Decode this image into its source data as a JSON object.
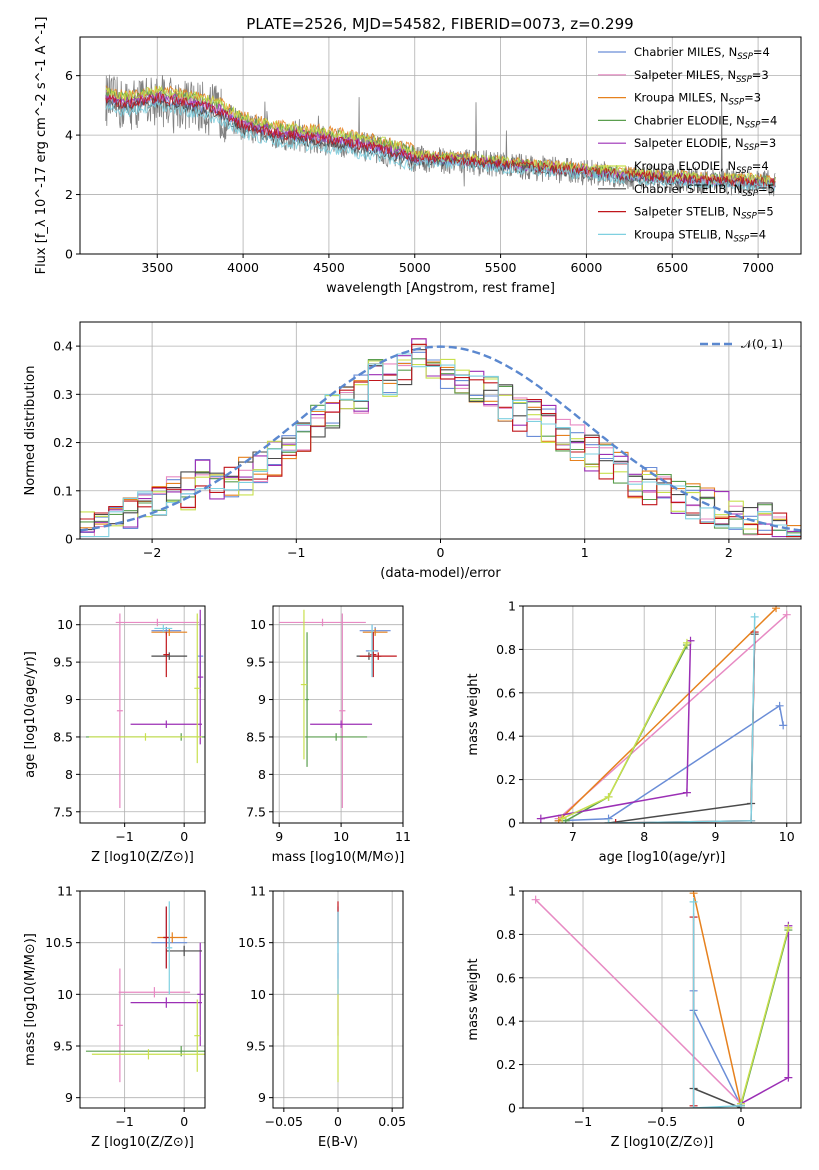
{
  "figure": {
    "title": "PLATE=2526, MJD=54582, FIBERID=0073, z=0.299"
  },
  "models": [
    {
      "name": "Chabrier MILES",
      "nssp": "4",
      "color": "#6a8dd7"
    },
    {
      "name": "Salpeter MILES",
      "nssp": "3",
      "color": "#e78ac3"
    },
    {
      "name": "Kroupa MILES",
      "nssp": "3",
      "color": "#e6811e"
    },
    {
      "name": "Chabrier ELODIE",
      "nssp": "4",
      "color": "#5a9e4e"
    },
    {
      "name": "Salpeter ELODIE",
      "nssp": "3",
      "color": "#9b2fb5"
    },
    {
      "name": "Kroupa ELODIE",
      "nssp": "4",
      "color": "#c8e04e"
    },
    {
      "name": "Chabrier STELIB",
      "nssp": "5",
      "color": "#4a4a4a"
    },
    {
      "name": "Salpeter STELIB",
      "nssp": "5",
      "color": "#c0161b"
    },
    {
      "name": "Kroupa STELIB",
      "nssp": "4",
      "color": "#7fd0e0"
    }
  ],
  "chart_data": [
    {
      "id": "spectrum",
      "type": "line",
      "xlabel": "wavelength [Angstrom, rest frame]",
      "ylabel": "Flux [f_λ 10^-17 erg cm^-2 s^-1 A^-1]",
      "xlim": [
        3050,
        7250
      ],
      "ylim": [
        0,
        7.3
      ],
      "xticks": [
        3500,
        4000,
        4500,
        5000,
        5500,
        6000,
        6500,
        7000
      ],
      "yticks": [
        0,
        2,
        4,
        6
      ],
      "legend": "top-right",
      "data_color": "#808080",
      "continuum": [
        [
          3200,
          5.2
        ],
        [
          3300,
          5.0
        ],
        [
          3500,
          5.2
        ],
        [
          3700,
          5.0
        ],
        [
          3850,
          4.8
        ],
        [
          4000,
          4.3
        ],
        [
          4200,
          4.0
        ],
        [
          4500,
          3.8
        ],
        [
          4800,
          3.5
        ],
        [
          5000,
          3.2
        ],
        [
          5300,
          3.1
        ],
        [
          5700,
          2.9
        ],
        [
          6000,
          2.75
        ],
        [
          6300,
          2.6
        ],
        [
          6700,
          2.45
        ],
        [
          7000,
          2.4
        ],
        [
          7100,
          2.35
        ]
      ],
      "model_offsets": [
        0.0,
        0.15,
        0.35,
        0.25,
        0.1,
        0.3,
        -0.1,
        0.05,
        -0.25
      ]
    },
    {
      "id": "residuals",
      "type": "step",
      "xlabel": "(data-model)/error",
      "ylabel": "Normed distribution",
      "xlim": [
        -2.5,
        2.5
      ],
      "ylim": [
        0,
        0.45
      ],
      "xticks": [
        -2,
        -1,
        0,
        1,
        2
      ],
      "yticks": [
        0.0,
        0.1,
        0.2,
        0.3,
        0.4
      ],
      "reference": {
        "name": "𝒩(0, 1)",
        "mean": 0,
        "sigma": 1,
        "color": "#5b88cf"
      },
      "legend": "top-right",
      "bin_edges_start": -2.5,
      "bin_width": 0.1,
      "base_histogram": [
        0.03,
        0.035,
        0.04,
        0.05,
        0.06,
        0.07,
        0.09,
        0.1,
        0.14,
        0.12,
        0.12,
        0.13,
        0.15,
        0.17,
        0.2,
        0.22,
        0.24,
        0.26,
        0.29,
        0.3,
        0.34,
        0.33,
        0.36,
        0.38,
        0.37,
        0.35,
        0.33,
        0.31,
        0.3,
        0.28,
        0.26,
        0.25,
        0.24,
        0.22,
        0.2,
        0.18,
        0.16,
        0.14,
        0.12,
        0.11,
        0.1,
        0.09,
        0.08,
        0.07,
        0.06,
        0.05,
        0.04,
        0.035,
        0.03,
        0.025
      ]
    },
    {
      "id": "age-vs-Z",
      "type": "errorbar",
      "xlabel": "Z [log10(Z/Z⊙)]",
      "ylabel": "age  [log10(age/yr)]",
      "xlim": [
        -1.75,
        0.35
      ],
      "ylim": [
        7.35,
        10.25
      ],
      "xticks": [
        -1,
        0
      ],
      "yticks": [
        7.5,
        8.0,
        8.5,
        9.0,
        9.5,
        10.0
      ],
      "points": [
        {
          "model": 0,
          "x": -0.3,
          "y": 9.92,
          "xerr": 0.25,
          "yerr": 0.05
        },
        {
          "model": 0,
          "x": 0.27,
          "y": 9.58,
          "xerr": 0.05,
          "yerr": 0.5
        },
        {
          "model": 1,
          "x": -0.45,
          "y": 10.03,
          "xerr": 0.7,
          "yerr": 0.05
        },
        {
          "model": 1,
          "x": -1.08,
          "y": 8.85,
          "xerr": 0.05,
          "yerr": 1.3
        },
        {
          "model": 2,
          "x": -0.25,
          "y": 9.9,
          "xerr": 0.3,
          "yerr": 0.05
        },
        {
          "model": 3,
          "x": -0.05,
          "y": 8.5,
          "xerr": 1.6,
          "yerr": 0.05
        },
        {
          "model": 4,
          "x": -0.3,
          "y": 8.67,
          "xerr": 0.6,
          "yerr": 0.05
        },
        {
          "model": 4,
          "x": 0.27,
          "y": 9.3,
          "xerr": 0.05,
          "yerr": 0.9
        },
        {
          "model": 5,
          "x": -0.65,
          "y": 8.5,
          "xerr": 0.95,
          "yerr": 0.05
        },
        {
          "model": 5,
          "x": 0.22,
          "y": 9.15,
          "xerr": 0.05,
          "yerr": 1.0
        },
        {
          "model": 6,
          "x": -0.25,
          "y": 9.58,
          "xerr": 0.3,
          "yerr": 0.05
        },
        {
          "model": 7,
          "x": -0.3,
          "y": 9.6,
          "xerr": 0.05,
          "yerr": 0.3
        },
        {
          "model": 8,
          "x": -0.35,
          "y": 9.95,
          "xerr": 0.15,
          "yerr": 0.05
        }
      ]
    },
    {
      "id": "age-vs-mass",
      "type": "errorbar",
      "xlabel": "mass [log10(M/M⊙)]",
      "ylabel": "",
      "xlim": [
        8.9,
        11.0
      ],
      "ylim": [
        7.35,
        10.25
      ],
      "xticks": [
        9,
        10,
        11
      ],
      "yticks": [
        7.5,
        8.0,
        8.5,
        9.0,
        9.5,
        10.0
      ],
      "points": [
        {
          "model": 0,
          "x": 10.55,
          "y": 9.92,
          "xerr": 0.25,
          "yerr": 0.05
        },
        {
          "model": 0,
          "x": 10.5,
          "y": 9.65,
          "xerr": 0.1,
          "yerr": 0.35
        },
        {
          "model": 1,
          "x": 9.7,
          "y": 10.03,
          "xerr": 0.7,
          "yerr": 0.05
        },
        {
          "model": 1,
          "x": 10.02,
          "y": 8.85,
          "xerr": 0.05,
          "yerr": 1.3
        },
        {
          "model": 2,
          "x": 10.55,
          "y": 9.9,
          "xerr": 0.2,
          "yerr": 0.05
        },
        {
          "model": 3,
          "x": 9.92,
          "y": 8.5,
          "xerr": 0.5,
          "yerr": 0.05
        },
        {
          "model": 3,
          "x": 9.45,
          "y": 9.0,
          "xerr": 0.03,
          "yerr": 0.9
        },
        {
          "model": 4,
          "x": 10.0,
          "y": 8.67,
          "xerr": 0.5,
          "yerr": 0.05
        },
        {
          "model": 5,
          "x": 9.4,
          "y": 9.2,
          "xerr": 0.05,
          "yerr": 1.0
        },
        {
          "model": 6,
          "x": 10.45,
          "y": 9.58,
          "xerr": 0.2,
          "yerr": 0.05
        },
        {
          "model": 7,
          "x": 10.6,
          "y": 9.58,
          "xerr": 0.3,
          "yerr": 0.05
        },
        {
          "model": 7,
          "x": 10.52,
          "y": 9.6,
          "xerr": 0.05,
          "yerr": 0.3
        },
        {
          "model": 8,
          "x": 10.5,
          "y": 9.65,
          "xerr": 0.05,
          "yerr": 0.35
        }
      ]
    },
    {
      "id": "weight-vs-age",
      "type": "line",
      "xlabel": "age  [log10(age/yr)]",
      "ylabel": "mass weight",
      "xlim": [
        6.3,
        10.2
      ],
      "ylim": [
        0,
        1.0
      ],
      "xticks": [
        7,
        8,
        9,
        10
      ],
      "yticks": [
        0.0,
        0.2,
        0.4,
        0.6,
        0.8,
        1.0
      ],
      "series": [
        {
          "model": 0,
          "points": [
            [
              6.8,
              0.01
            ],
            [
              7.5,
              0.02
            ],
            [
              9.9,
              0.54
            ],
            [
              9.95,
              0.45
            ]
          ]
        },
        {
          "model": 1,
          "points": [
            [
              6.8,
              0.02
            ],
            [
              10.0,
              0.96
            ]
          ]
        },
        {
          "model": 2,
          "points": [
            [
              6.8,
              0.01
            ],
            [
              9.85,
              0.99
            ]
          ]
        },
        {
          "model": 3,
          "points": [
            [
              6.9,
              0.01
            ],
            [
              7.5,
              0.12
            ],
            [
              8.6,
              0.82
            ]
          ]
        },
        {
          "model": 4,
          "points": [
            [
              6.55,
              0.02
            ],
            [
              8.6,
              0.14
            ],
            [
              8.65,
              0.84
            ]
          ]
        },
        {
          "model": 5,
          "points": [
            [
              6.85,
              0.02
            ],
            [
              7.5,
              0.12
            ],
            [
              8.6,
              0.83
            ]
          ]
        },
        {
          "model": 6,
          "points": [
            [
              7.5,
              0.0
            ],
            [
              9.5,
              0.09
            ],
            [
              9.55,
              0.87
            ]
          ]
        },
        {
          "model": 7,
          "points": [
            [
              7.6,
              0.0
            ],
            [
              9.5,
              0.01
            ],
            [
              9.55,
              0.88
            ]
          ]
        },
        {
          "model": 8,
          "points": [
            [
              7.5,
              0.0
            ],
            [
              9.5,
              0.01
            ],
            [
              9.55,
              0.95
            ]
          ]
        }
      ]
    },
    {
      "id": "mass-vs-Z",
      "type": "errorbar",
      "xlabel": "Z [log10(Z/Z⊙)]",
      "ylabel": "mass [log10(M/M⊙)]",
      "xlim": [
        -1.75,
        0.35
      ],
      "ylim": [
        8.9,
        11.0
      ],
      "xticks": [
        -1,
        0
      ],
      "yticks": [
        9.0,
        9.5,
        10.0,
        10.5,
        11.0
      ],
      "points": [
        {
          "model": 0,
          "x": -0.25,
          "y": 10.5,
          "xerr": 0.3,
          "yerr": 0.05
        },
        {
          "model": 0,
          "x": -0.3,
          "y": 10.55,
          "xerr": 0.05,
          "yerr": 0.3
        },
        {
          "model": 1,
          "x": -0.5,
          "y": 10.02,
          "xerr": 0.6,
          "yerr": 0.05
        },
        {
          "model": 1,
          "x": -1.08,
          "y": 9.7,
          "xerr": 0.05,
          "yerr": 0.55
        },
        {
          "model": 2,
          "x": -0.2,
          "y": 10.55,
          "xerr": 0.25,
          "yerr": 0.05
        },
        {
          "model": 3,
          "x": -0.05,
          "y": 9.45,
          "xerr": 1.6,
          "yerr": 0.05
        },
        {
          "model": 4,
          "x": -0.3,
          "y": 9.92,
          "xerr": 0.6,
          "yerr": 0.05
        },
        {
          "model": 4,
          "x": 0.27,
          "y": 10.0,
          "xerr": 0.05,
          "yerr": 0.5
        },
        {
          "model": 5,
          "x": -0.6,
          "y": 9.42,
          "xerr": 0.95,
          "yerr": 0.05
        },
        {
          "model": 5,
          "x": 0.22,
          "y": 9.6,
          "xerr": 0.05,
          "yerr": 0.35
        },
        {
          "model": 6,
          "x": 0.0,
          "y": 10.42,
          "xerr": 0.3,
          "yerr": 0.05
        },
        {
          "model": 7,
          "x": -0.3,
          "y": 10.55,
          "xerr": 0.05,
          "yerr": 0.3
        },
        {
          "model": 8,
          "x": -0.25,
          "y": 10.45,
          "xerr": 0.05,
          "yerr": 0.45
        }
      ]
    },
    {
      "id": "mass-vs-ebv",
      "type": "errorbar",
      "xlabel": "E(B-V)",
      "ylabel": "",
      "xlim": [
        -0.06,
        0.06
      ],
      "ylim": [
        8.9,
        11.0
      ],
      "xticks": [
        -0.05,
        0.0,
        0.05
      ],
      "yticks": [
        9.0,
        9.5,
        10.0,
        10.5,
        11.0
      ],
      "points": [
        {
          "model": 0,
          "x": 0.0,
          "y": 10.5,
          "xerr": 0.0,
          "yerr": 0.35
        },
        {
          "model": 1,
          "x": 0.0,
          "y": 10.0,
          "xerr": 0.0,
          "yerr": 0.4
        },
        {
          "model": 5,
          "x": 0.0,
          "y": 9.65,
          "xerr": 0.0,
          "yerr": 0.5
        },
        {
          "model": 7,
          "x": 0.0,
          "y": 10.7,
          "xerr": 0.0,
          "yerr": 0.2
        },
        {
          "model": 8,
          "x": 0.0,
          "y": 10.4,
          "xerr": 0.0,
          "yerr": 0.4
        }
      ]
    },
    {
      "id": "weight-vs-Z",
      "type": "line",
      "xlabel": "Z [log10(Z/Z⊙)]",
      "ylabel": "mass weight",
      "xlim": [
        -1.38,
        0.38
      ],
      "ylim": [
        0,
        1.0
      ],
      "xticks": [
        -1.0,
        -0.5,
        0.0
      ],
      "yticks": [
        0.0,
        0.2,
        0.4,
        0.6,
        0.8,
        1.0
      ],
      "series": [
        {
          "model": 0,
          "points": [
            [
              -0.3,
              0.54
            ],
            [
              -0.3,
              0.45
            ],
            [
              0.0,
              0.01
            ]
          ]
        },
        {
          "model": 1,
          "points": [
            [
              -1.3,
              0.96
            ],
            [
              0.0,
              0.02
            ]
          ]
        },
        {
          "model": 2,
          "points": [
            [
              -0.3,
              0.99
            ],
            [
              0.0,
              0.01
            ]
          ]
        },
        {
          "model": 3,
          "points": [
            [
              0.0,
              0.01
            ],
            [
              0.3,
              0.82
            ]
          ]
        },
        {
          "model": 4,
          "points": [
            [
              0.3,
              0.84
            ],
            [
              0.3,
              0.14
            ],
            [
              0.0,
              0.02
            ]
          ]
        },
        {
          "model": 5,
          "points": [
            [
              0.0,
              0.02
            ],
            [
              0.3,
              0.83
            ]
          ]
        },
        {
          "model": 6,
          "points": [
            [
              -0.3,
              0.09
            ],
            [
              0.0,
              0.0
            ]
          ]
        },
        {
          "model": 7,
          "points": [
            [
              -0.3,
              0.88
            ],
            [
              -0.3,
              0.01
            ]
          ]
        },
        {
          "model": 8,
          "points": [
            [
              -0.3,
              0.95
            ],
            [
              -0.3,
              0.0
            ],
            [
              0.0,
              0.01
            ]
          ]
        }
      ]
    }
  ]
}
